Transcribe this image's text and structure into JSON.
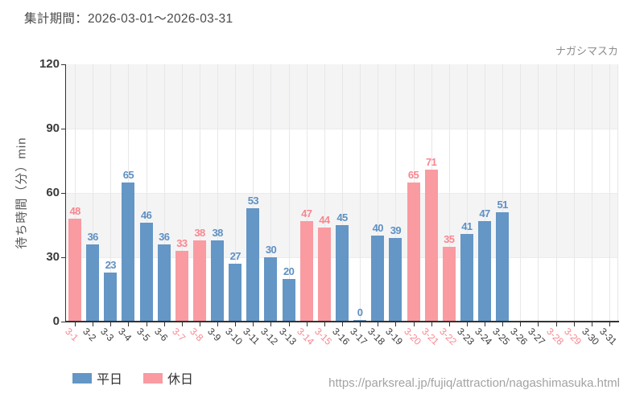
{
  "header": {
    "title": "集計期間：2026-03-01～2026-03-31",
    "watermark": "ナガシマスカ"
  },
  "footer": {
    "url": "https://parksreal.jp/fujiq/attraction/nagashimasuka.html"
  },
  "legend": {
    "items": [
      {
        "label": "平日",
        "type": "weekday"
      },
      {
        "label": "休日",
        "type": "holiday"
      }
    ]
  },
  "colors": {
    "weekday_bar": "#6496c6",
    "weekday_label": "#5e90c2",
    "holiday_bar": "#f99ba1",
    "holiday_label": "#f9868f",
    "xlabel_weekday": "#3a3a3a",
    "xlabel_holiday": "#f9868f",
    "axis": "#333333",
    "band": "#f4f4f5",
    "grid": "#e7e7e7"
  },
  "chart_data": {
    "type": "bar",
    "title": "集計期間：2026-03-01～2026-03-31",
    "xlabel": "",
    "ylabel": "待ち時間（分）min",
    "ylim": [
      0,
      120
    ],
    "yticks": [
      0,
      30,
      60,
      90,
      120
    ],
    "grid": "vertical gridlines at each category; alternating horizontal bands (90-120 and 30-60 shaded)",
    "legend_position": "bottom-left",
    "categories": [
      "3-1",
      "3-2",
      "3-3",
      "3-4",
      "3-5",
      "3-6",
      "3-7",
      "3-8",
      "3-9",
      "3-10",
      "3-11",
      "3-12",
      "3-13",
      "3-14",
      "3-15",
      "3-16",
      "3-17",
      "3-18",
      "3-19",
      "3-20",
      "3-21",
      "3-22",
      "3-23",
      "3-24",
      "3-25",
      "3-26",
      "3-27",
      "3-28",
      "3-29",
      "3-30",
      "3-31"
    ],
    "series": [
      {
        "name": "平日",
        "type": "weekday"
      },
      {
        "name": "休日",
        "type": "holiday"
      }
    ],
    "days": [
      {
        "label": "3-1",
        "value": 48,
        "type": "holiday"
      },
      {
        "label": "3-2",
        "value": 36,
        "type": "weekday"
      },
      {
        "label": "3-3",
        "value": 23,
        "type": "weekday"
      },
      {
        "label": "3-4",
        "value": 65,
        "type": "weekday"
      },
      {
        "label": "3-5",
        "value": 46,
        "type": "weekday"
      },
      {
        "label": "3-6",
        "value": 36,
        "type": "weekday"
      },
      {
        "label": "3-7",
        "value": 33,
        "type": "holiday"
      },
      {
        "label": "3-8",
        "value": 38,
        "type": "holiday"
      },
      {
        "label": "3-9",
        "value": 38,
        "type": "weekday"
      },
      {
        "label": "3-10",
        "value": 27,
        "type": "weekday"
      },
      {
        "label": "3-11",
        "value": 53,
        "type": "weekday"
      },
      {
        "label": "3-12",
        "value": 30,
        "type": "weekday"
      },
      {
        "label": "3-13",
        "value": 20,
        "type": "weekday"
      },
      {
        "label": "3-14",
        "value": 47,
        "type": "holiday"
      },
      {
        "label": "3-15",
        "value": 44,
        "type": "holiday"
      },
      {
        "label": "3-16",
        "value": 45,
        "type": "weekday"
      },
      {
        "label": "3-17",
        "value": 0,
        "type": "weekday"
      },
      {
        "label": "3-18",
        "value": 40,
        "type": "weekday"
      },
      {
        "label": "3-19",
        "value": 39,
        "type": "weekday"
      },
      {
        "label": "3-20",
        "value": 65,
        "type": "holiday"
      },
      {
        "label": "3-21",
        "value": 71,
        "type": "holiday"
      },
      {
        "label": "3-22",
        "value": 35,
        "type": "holiday"
      },
      {
        "label": "3-23",
        "value": 41,
        "type": "weekday"
      },
      {
        "label": "3-24",
        "value": 47,
        "type": "weekday"
      },
      {
        "label": "3-25",
        "value": 51,
        "type": "weekday"
      },
      {
        "label": "3-26",
        "value": null,
        "type": "weekday"
      },
      {
        "label": "3-27",
        "value": null,
        "type": "weekday"
      },
      {
        "label": "3-28",
        "value": null,
        "type": "holiday"
      },
      {
        "label": "3-29",
        "value": null,
        "type": "holiday"
      },
      {
        "label": "3-30",
        "value": null,
        "type": "weekday"
      },
      {
        "label": "3-31",
        "value": null,
        "type": "weekday"
      }
    ]
  }
}
